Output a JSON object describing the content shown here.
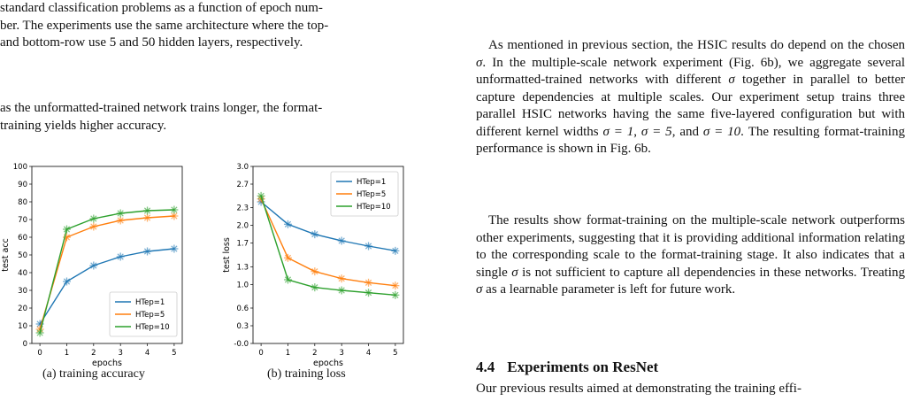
{
  "left": {
    "caption_lines": [
      "standard classification problems as a function of epoch num-",
      "ber. The experiments use the same architecture where the top-",
      "and bottom-row use 5 and 50 hidden layers, respectively."
    ],
    "para2_lines": [
      "as the unformatted-trained network trains longer, the format-",
      "training yields higher accuracy."
    ],
    "subcaption_a": "(a) training accuracy",
    "subcaption_b": "(b) training loss"
  },
  "right": {
    "para1": {
      "t1": "As mentioned in previous section, the HSIC results do depend on the chosen ",
      "sigma1": "σ",
      "t2": ". In the multiple-scale network experiment (Fig. 6b), we aggregate several unformatted-trained networks with different ",
      "sigma2": "σ",
      "t3": " together in parallel to better capture dependencies at multiple scales. Our experiment setup trains three parallel HSIC networks having the same five-layered configuration but with different kernel widths ",
      "k1": "σ = 1",
      "t4": ", ",
      "k2": "σ = 5",
      "t5": ", and ",
      "k3": "σ = 10",
      "t6": ". The resulting format-training performance is shown in Fig. 6b."
    },
    "para2": {
      "t1": "The results show format-training on the multiple-scale network outperforms other experiments, suggesting that it is providing additional information relating to the corresponding scale to the format-training stage. It also indicates that a single ",
      "sigma1": "σ",
      "t2": " is not sufficient to capture all dependencies in these networks. Treating ",
      "sigma2": "σ",
      "t3": " as a learnable parameter is left for future work."
    },
    "section_number": "4.4",
    "section_title": "Experiments on ResNet",
    "para3": "Our previous results aimed at demonstrating the training effi-"
  },
  "colors": {
    "series1": "#1f77b4",
    "series2": "#ff7f0e",
    "series3": "#2ca02c"
  },
  "chart_data": [
    {
      "type": "line",
      "xlabel": "epochs",
      "ylabel": "test acc",
      "x": [
        0,
        1,
        2,
        3,
        4,
        5
      ],
      "xlim": [
        -0.3,
        5.3
      ],
      "ylim": [
        0,
        100
      ],
      "yticks": [
        0,
        10,
        20,
        30,
        40,
        50,
        60,
        70,
        80,
        90,
        100
      ],
      "ytick_labels": [
        "0",
        "10",
        "20",
        "30",
        "40",
        "50",
        "60",
        "70",
        "80",
        "90",
        "100"
      ],
      "xticks": [
        0,
        1,
        2,
        3,
        4,
        5
      ],
      "xtick_labels": [
        "0",
        "1",
        "2",
        "3",
        "4",
        "5"
      ],
      "legend_position": "bottom-right",
      "series": [
        {
          "name": "HTep=1",
          "values": [
            11,
            35,
            44,
            49,
            52,
            53.5
          ]
        },
        {
          "name": "HTep=5",
          "values": [
            8,
            60,
            66,
            69.5,
            71,
            72
          ]
        },
        {
          "name": "HTep=10",
          "values": [
            6,
            64.5,
            70.5,
            73.5,
            75,
            75.5
          ]
        }
      ]
    },
    {
      "type": "line",
      "xlabel": "epochs",
      "ylabel": "test loss",
      "x": [
        0,
        1,
        2,
        3,
        4,
        5
      ],
      "xlim": [
        -0.3,
        5.3
      ],
      "ylim": [
        0,
        3.0
      ],
      "yticks": [
        0,
        0.3,
        0.6,
        1.0,
        1.3,
        1.7,
        2.0,
        2.3,
        2.7,
        3.0
      ],
      "ytick_labels": [
        "-0.0",
        "0.3",
        "0.6",
        "1.0",
        "1.3",
        "1.7",
        "2.0",
        "2.3",
        "2.7",
        "3.0"
      ],
      "xticks": [
        0,
        1,
        2,
        3,
        4,
        5
      ],
      "xtick_labels": [
        "0",
        "1",
        "2",
        "3",
        "4",
        "5"
      ],
      "legend_position": "top-right",
      "series": [
        {
          "name": "HTep=1",
          "values": [
            2.4,
            2.02,
            1.85,
            1.74,
            1.65,
            1.57
          ]
        },
        {
          "name": "HTep=5",
          "values": [
            2.45,
            1.45,
            1.22,
            1.1,
            1.03,
            0.98
          ]
        },
        {
          "name": "HTep=10",
          "values": [
            2.5,
            1.08,
            0.95,
            0.9,
            0.86,
            0.82
          ]
        }
      ]
    }
  ]
}
